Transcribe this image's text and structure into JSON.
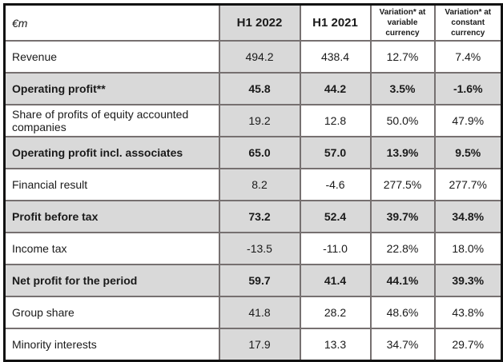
{
  "header": {
    "unit": "€m",
    "col_h1_2022": "H1 2022",
    "col_h1_2021": "H1 2021",
    "col_var_variable_line1": "Variation* at",
    "col_var_variable_line2": "variable currency",
    "col_var_constant_line1": "Variation* at",
    "col_var_constant_line2": "constant currency"
  },
  "rows": [
    {
      "label": "Revenue",
      "h1_2022": "494.2",
      "h1_2021": "438.4",
      "var_variable": "12.7%",
      "var_constant": "7.4%",
      "emphasis": false
    },
    {
      "label": "Operating profit**",
      "h1_2022": "45.8",
      "h1_2021": "44.2",
      "var_variable": "3.5%",
      "var_constant": "-1.6%",
      "emphasis": true
    },
    {
      "label": "Share of profits of equity accounted companies",
      "h1_2022": "19.2",
      "h1_2021": "12.8",
      "var_variable": "50.0%",
      "var_constant": "47.9%",
      "emphasis": false
    },
    {
      "label": "Operating profit incl. associates",
      "h1_2022": "65.0",
      "h1_2021": "57.0",
      "var_variable": "13.9%",
      "var_constant": "9.5%",
      "emphasis": true
    },
    {
      "label": "Financial result",
      "h1_2022": "8.2",
      "h1_2021": "-4.6",
      "var_variable": "277.5%",
      "var_constant": "277.7%",
      "emphasis": false
    },
    {
      "label": "Profit before tax",
      "h1_2022": "73.2",
      "h1_2021": "52.4",
      "var_variable": "39.7%",
      "var_constant": "34.8%",
      "emphasis": true
    },
    {
      "label": "Income tax",
      "h1_2022": "-13.5",
      "h1_2021": "-11.0",
      "var_variable": "22.8%",
      "var_constant": "18.0%",
      "emphasis": false
    },
    {
      "label": "Net profit for the period",
      "h1_2022": "59.7",
      "h1_2021": "41.4",
      "var_variable": "44.1%",
      "var_constant": "39.3%",
      "emphasis": true
    },
    {
      "label": "Group share",
      "h1_2022": "41.8",
      "h1_2021": "28.2",
      "var_variable": "48.6%",
      "var_constant": "43.8%",
      "emphasis": false
    },
    {
      "label": "Minority interests",
      "h1_2022": "17.9",
      "h1_2021": "13.3",
      "var_variable": "34.7%",
      "var_constant": "29.7%",
      "emphasis": false
    }
  ],
  "colors": {
    "row_highlight": "#d9d9d9",
    "column_highlight": "#d9d9d9",
    "border_inner": "#767070",
    "border_outer": "#111111",
    "text": "#1a1a1a"
  }
}
